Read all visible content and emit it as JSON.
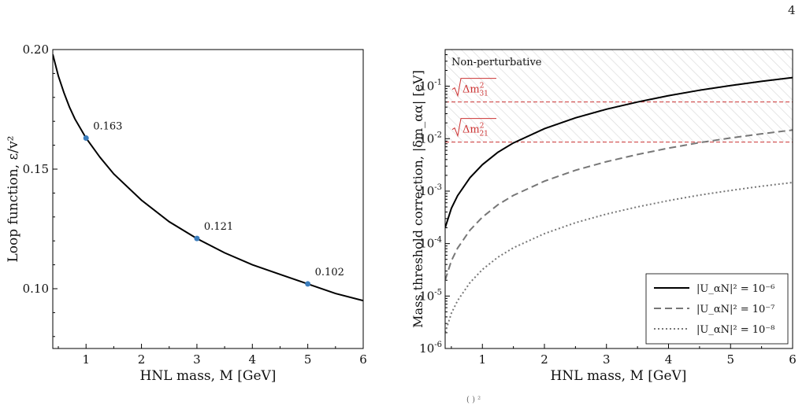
{
  "page": {
    "number": "4",
    "caption_fragment": "( ) ²"
  },
  "chart_data": [
    {
      "type": "line",
      "title": "",
      "xlabel": "HNL mass, M [GeV]",
      "ylabel": "Loop function, ε/v²",
      "xlim": [
        0.4,
        6
      ],
      "ylim": [
        0.075,
        0.2
      ],
      "xscale": "linear",
      "yscale": "linear",
      "xticks": [
        1,
        2,
        3,
        4,
        5,
        6
      ],
      "yticks": [
        0.1,
        0.15,
        0.2
      ],
      "ytick_labels": [
        "0.10",
        "0.15",
        "0.20"
      ],
      "grid": false,
      "series": [
        {
          "color": "#000000",
          "style": "solid",
          "x": [
            0.4,
            0.5,
            0.6,
            0.7,
            0.8,
            1.0,
            1.25,
            1.5,
            2.0,
            2.5,
            3.0,
            3.5,
            4.0,
            4.5,
            5.0,
            5.5,
            6.0
          ],
          "y": [
            0.198,
            0.189,
            0.182,
            0.176,
            0.171,
            0.163,
            0.155,
            0.148,
            0.137,
            0.128,
            0.121,
            0.115,
            0.11,
            0.106,
            0.102,
            0.098,
            0.095
          ]
        }
      ],
      "markers": [
        {
          "x": 1,
          "y": 0.163,
          "label": "0.163"
        },
        {
          "x": 3,
          "y": 0.121,
          "label": "0.121"
        },
        {
          "x": 5,
          "y": 0.102,
          "label": "0.102"
        }
      ],
      "marker_color": "#3b7dbd"
    },
    {
      "type": "line",
      "title": "",
      "xlabel": "HNL mass, M [GeV]",
      "ylabel": "Mass threshold correction, |δm_αα| [eV]",
      "xlim": [
        0.4,
        6
      ],
      "ylim": [
        1e-06,
        0.5
      ],
      "xscale": "linear",
      "yscale": "log",
      "xticks": [
        1,
        2,
        3,
        4,
        5,
        6
      ],
      "yticks": [
        1e-06,
        1e-05,
        0.0001,
        0.001,
        0.01,
        0.1
      ],
      "ytick_exponents": [
        "-6",
        "-5",
        "-4",
        "-3",
        "-2",
        "-1"
      ],
      "grid": false,
      "legend_position": "bottom-right",
      "series": [
        {
          "name": "|U_αN|² = 10⁻⁶",
          "color": "#000000",
          "style": "solid",
          "x": [
            0.4,
            0.5,
            0.6,
            0.8,
            1.0,
            1.25,
            1.5,
            2.0,
            2.5,
            3.0,
            3.5,
            4.0,
            4.5,
            5.0,
            5.5,
            6.0
          ],
          "y": [
            0.0002,
            0.00047,
            0.00082,
            0.0018,
            0.0032,
            0.0055,
            0.0083,
            0.0155,
            0.025,
            0.0365,
            0.05,
            0.066,
            0.084,
            0.103,
            0.124,
            0.146
          ]
        },
        {
          "name": "|U_αN|² = 10⁻⁷",
          "color": "#777777",
          "style": "dashed",
          "x": [
            0.4,
            0.5,
            0.6,
            0.8,
            1.0,
            1.25,
            1.5,
            2.0,
            2.5,
            3.0,
            3.5,
            4.0,
            4.5,
            5.0,
            5.5,
            6.0
          ],
          "y": [
            2e-05,
            4.7e-05,
            8.2e-05,
            0.00018,
            0.00032,
            0.00055,
            0.00083,
            0.00155,
            0.0025,
            0.00365,
            0.005,
            0.0066,
            0.0084,
            0.0103,
            0.0124,
            0.0146
          ]
        },
        {
          "name": "|U_αN|² = 10⁻⁸",
          "color": "#777777",
          "style": "dotted",
          "x": [
            0.4,
            0.5,
            0.6,
            0.8,
            1.0,
            1.25,
            1.5,
            2.0,
            2.5,
            3.0,
            3.5,
            4.0,
            4.5,
            5.0,
            5.5,
            6.0
          ],
          "y": [
            2e-06,
            4.7e-06,
            8.2e-06,
            1.8e-05,
            3.2e-05,
            5.5e-05,
            8.3e-05,
            0.000155,
            0.00025,
            0.000365,
            0.0005,
            0.00066,
            0.00084,
            0.00103,
            0.00124,
            0.00146
          ]
        }
      ],
      "hlines": [
        {
          "y": 0.05,
          "label_radical": "Δm",
          "label_sup": "2",
          "label_sub": "31",
          "color": "#cc3333"
        },
        {
          "y": 0.0086,
          "label_radical": "Δm",
          "label_sup": "2",
          "label_sub": "21",
          "color": "#cc3333"
        }
      ],
      "hatched_region": {
        "ymin": 0.0086,
        "label": "Non-perturbative"
      }
    }
  ]
}
